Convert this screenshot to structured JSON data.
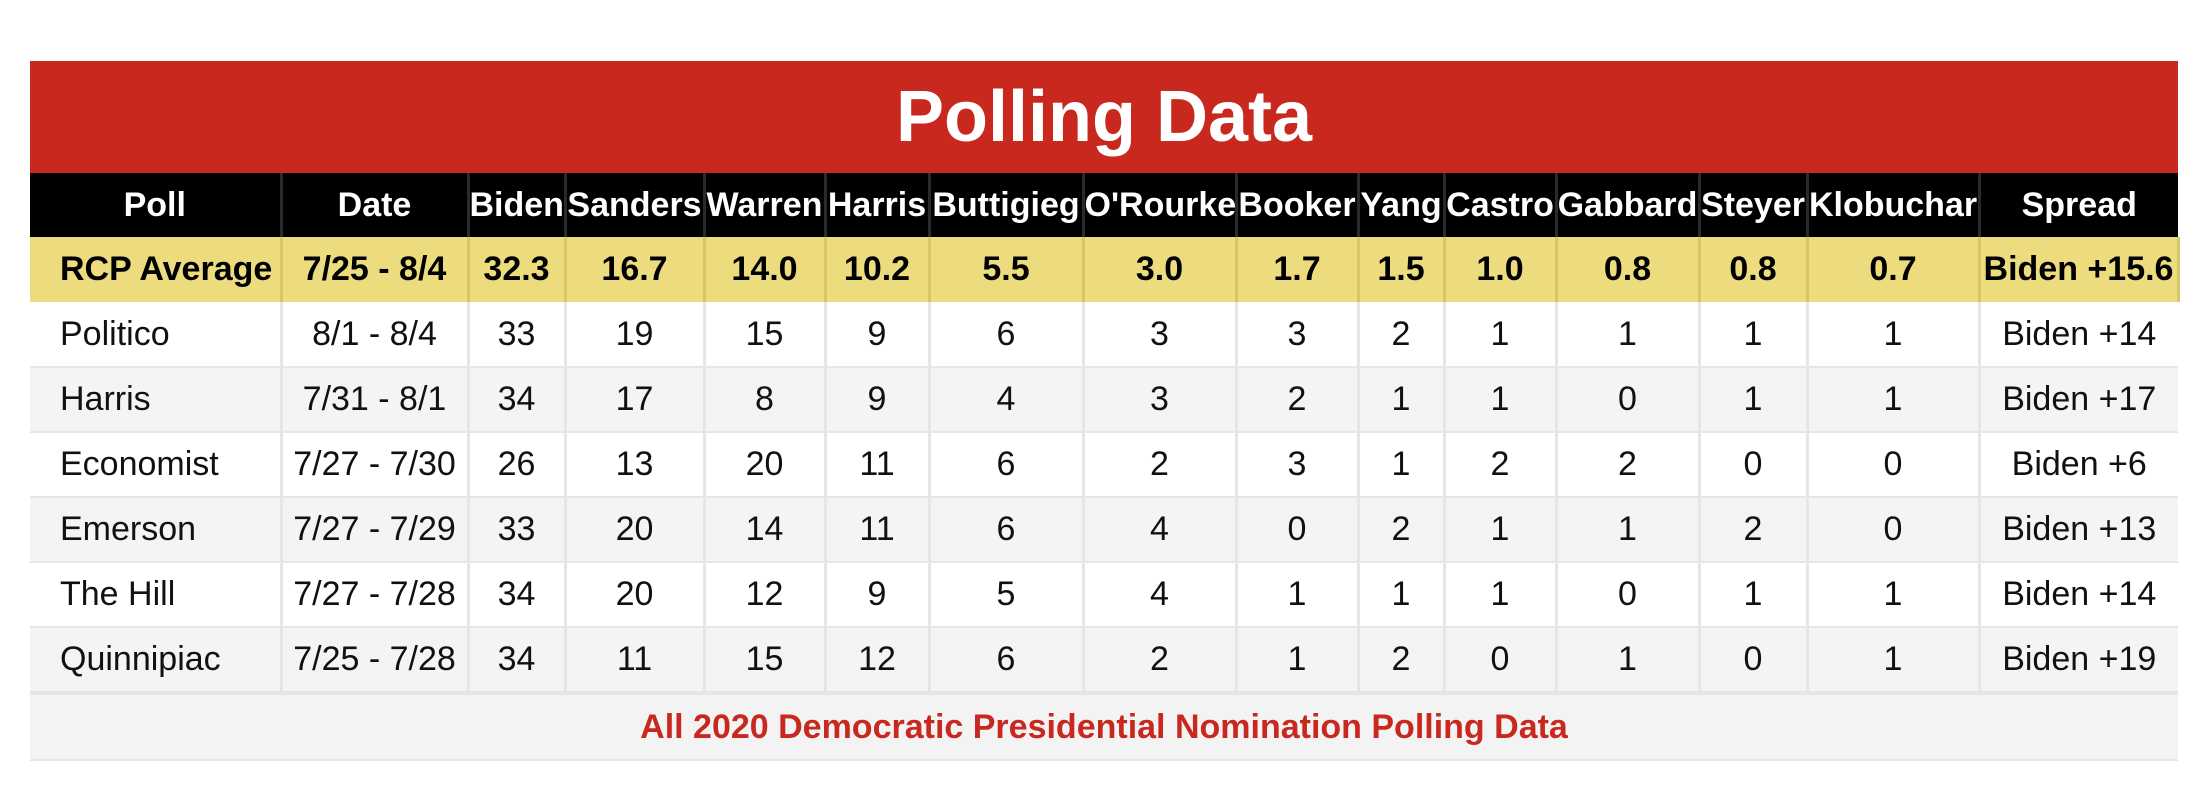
{
  "colors": {
    "title_bg": "#c8281e",
    "header_bg": "#000000",
    "avg_bg": "#ecdc7e",
    "link": "#c8281e"
  },
  "chart_data": {
    "type": "table",
    "title": "Polling Data",
    "columns": [
      "Poll",
      "Date",
      "Biden",
      "Sanders",
      "Warren",
      "Harris",
      "Buttigieg",
      "O'Rourke",
      "Booker",
      "Yang",
      "Castro",
      "Gabbard",
      "Steyer",
      "Klobuchar",
      "Spread"
    ],
    "average": [
      "RCP Average",
      "7/25 - 8/4",
      "32.3",
      "16.7",
      "14.0",
      "10.2",
      "5.5",
      "3.0",
      "1.7",
      "1.5",
      "1.0",
      "0.8",
      "0.8",
      "0.7",
      "Biden +15.6"
    ],
    "rows": [
      [
        "Politico",
        "8/1 - 8/4",
        "33",
        "19",
        "15",
        "9",
        "6",
        "3",
        "3",
        "2",
        "1",
        "1",
        "1",
        "1",
        "Biden +14"
      ],
      [
        "Harris",
        "7/31 - 8/1",
        "34",
        "17",
        "8",
        "9",
        "4",
        "3",
        "2",
        "1",
        "1",
        "0",
        "1",
        "1",
        "Biden +17"
      ],
      [
        "Economist",
        "7/27 - 7/30",
        "26",
        "13",
        "20",
        "11",
        "6",
        "2",
        "3",
        "1",
        "2",
        "2",
        "0",
        "0",
        "Biden +6"
      ],
      [
        "Emerson",
        "7/27 - 7/29",
        "33",
        "20",
        "14",
        "11",
        "6",
        "4",
        "0",
        "2",
        "1",
        "1",
        "2",
        "0",
        "Biden +13"
      ],
      [
        "The Hill",
        "7/27 - 7/28",
        "34",
        "20",
        "12",
        "9",
        "5",
        "4",
        "1",
        "1",
        "1",
        "0",
        "1",
        "1",
        "Biden +14"
      ],
      [
        "Quinnipiac",
        "7/25 - 7/28",
        "34",
        "11",
        "15",
        "12",
        "6",
        "2",
        "1",
        "2",
        "0",
        "1",
        "0",
        "1",
        "Biden +19"
      ]
    ],
    "footer_link": "All 2020 Democratic Presidential Nomination Polling Data"
  }
}
